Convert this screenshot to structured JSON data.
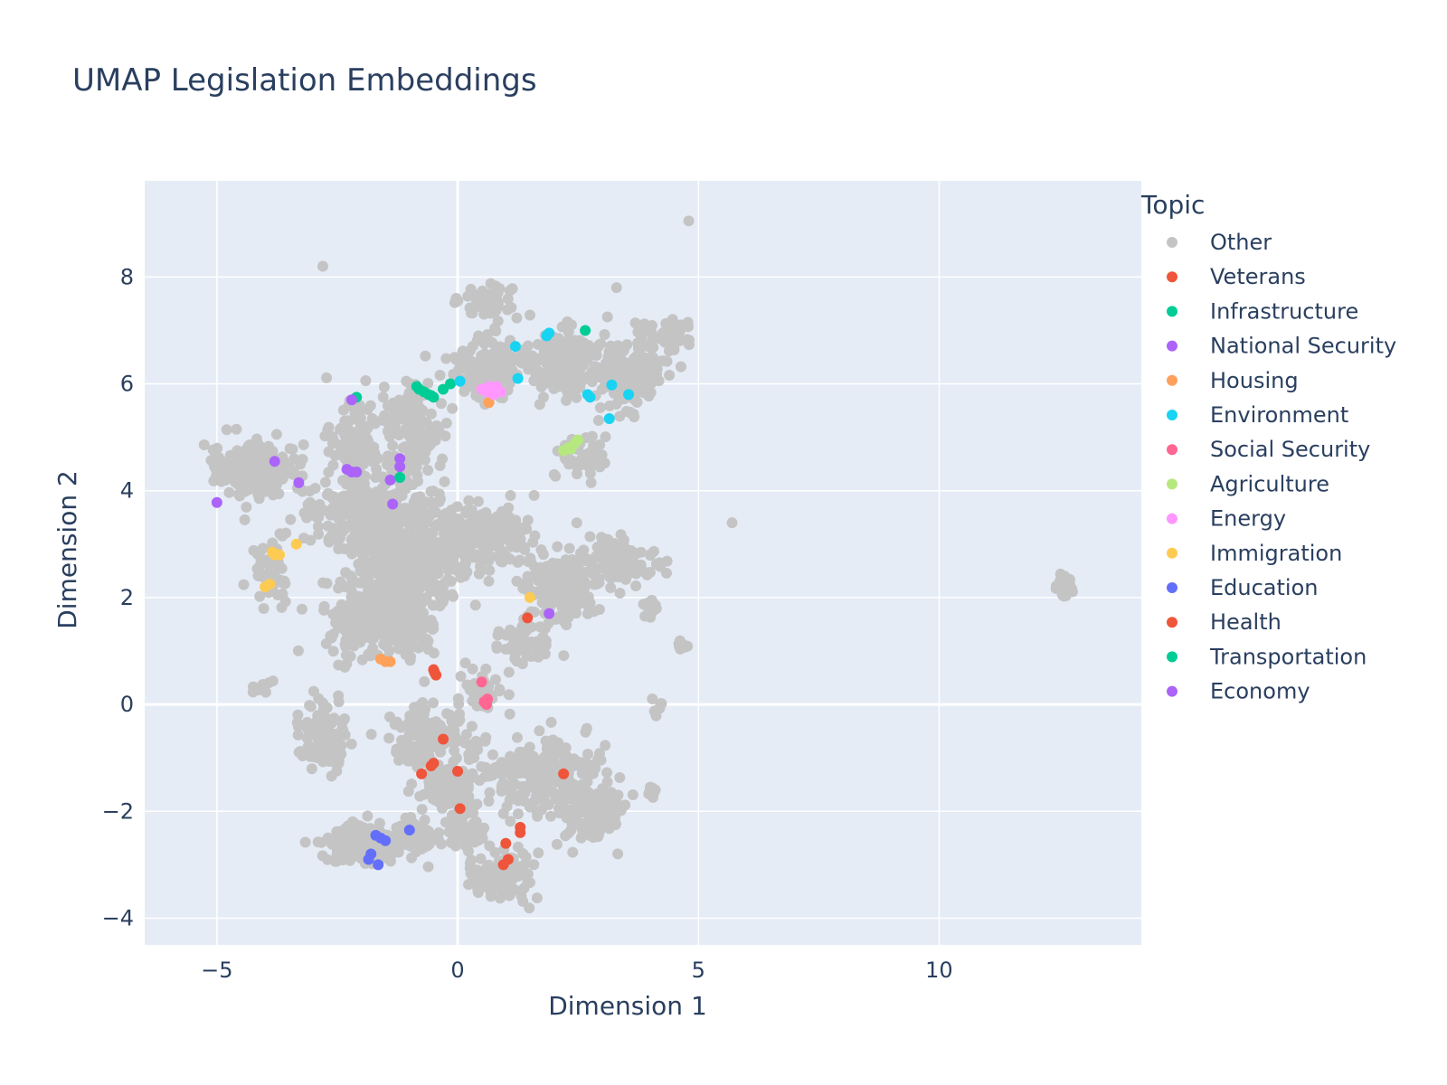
{
  "chart_data": {
    "type": "scatter",
    "title": "UMAP Legislation Embeddings",
    "xlabel": "Dimension 1",
    "ylabel": "Dimension 2",
    "xlim": [
      -6.5,
      14.2
    ],
    "ylim": [
      -4.5,
      9.8
    ],
    "xticks": [
      -5,
      0,
      5,
      10
    ],
    "yticks": [
      -4,
      -2,
      0,
      2,
      4,
      6,
      8
    ],
    "grid": true,
    "legend": {
      "title": "Topic",
      "position": "right"
    },
    "other_clusters": [
      {
        "center": [
          -4.2,
          4.4
        ],
        "spread": [
          0.55,
          0.35
        ],
        "n": 260
      },
      {
        "center": [
          -2.2,
          5.0
        ],
        "spread": [
          0.35,
          0.45
        ],
        "n": 90
      },
      {
        "center": [
          -1.0,
          5.1
        ],
        "spread": [
          0.5,
          0.6
        ],
        "n": 140
      },
      {
        "center": [
          0.6,
          7.6
        ],
        "spread": [
          0.35,
          0.25
        ],
        "n": 60
      },
      {
        "center": [
          0.6,
          6.3
        ],
        "spread": [
          0.55,
          0.4
        ],
        "n": 120
      },
      {
        "center": [
          2.2,
          6.4
        ],
        "spread": [
          0.65,
          0.45
        ],
        "n": 180
      },
      {
        "center": [
          3.6,
          6.2
        ],
        "spread": [
          0.55,
          0.45
        ],
        "n": 150
      },
      {
        "center": [
          4.4,
          6.9
        ],
        "spread": [
          0.35,
          0.2
        ],
        "n": 50
      },
      {
        "center": [
          2.6,
          4.6
        ],
        "spread": [
          0.35,
          0.3
        ],
        "n": 50
      },
      {
        "center": [
          -1.8,
          3.6
        ],
        "spread": [
          0.9,
          0.5
        ],
        "n": 320
      },
      {
        "center": [
          -1.0,
          2.6
        ],
        "spread": [
          0.9,
          0.6
        ],
        "n": 380
      },
      {
        "center": [
          0.6,
          3.2
        ],
        "spread": [
          0.7,
          0.35
        ],
        "n": 180
      },
      {
        "center": [
          -2.0,
          1.6
        ],
        "spread": [
          0.55,
          0.5
        ],
        "n": 160
      },
      {
        "center": [
          -1.0,
          1.4
        ],
        "spread": [
          0.4,
          0.45
        ],
        "n": 120
      },
      {
        "center": [
          -3.9,
          2.5
        ],
        "spread": [
          0.3,
          0.45
        ],
        "n": 60
      },
      {
        "center": [
          2.2,
          2.2
        ],
        "spread": [
          0.6,
          0.45
        ],
        "n": 180
      },
      {
        "center": [
          3.4,
          2.7
        ],
        "spread": [
          0.5,
          0.3
        ],
        "n": 110
      },
      {
        "center": [
          1.4,
          1.2
        ],
        "spread": [
          0.4,
          0.3
        ],
        "n": 50
      },
      {
        "center": [
          0.6,
          0.3
        ],
        "spread": [
          0.35,
          0.3
        ],
        "n": 45
      },
      {
        "center": [
          -2.8,
          -0.6
        ],
        "spread": [
          0.35,
          0.4
        ],
        "n": 120
      },
      {
        "center": [
          -0.6,
          -0.6
        ],
        "spread": [
          0.6,
          0.35
        ],
        "n": 160
      },
      {
        "center": [
          -0.2,
          -1.6
        ],
        "spread": [
          0.5,
          0.4
        ],
        "n": 90
      },
      {
        "center": [
          1.6,
          -1.3
        ],
        "spread": [
          0.8,
          0.5
        ],
        "n": 200
      },
      {
        "center": [
          2.8,
          -1.9
        ],
        "spread": [
          0.45,
          0.5
        ],
        "n": 140
      },
      {
        "center": [
          -2.0,
          -2.6
        ],
        "spread": [
          0.65,
          0.25
        ],
        "n": 160
      },
      {
        "center": [
          -0.9,
          -2.5
        ],
        "spread": [
          0.4,
          0.2
        ],
        "n": 60
      },
      {
        "center": [
          0.9,
          -3.2
        ],
        "spread": [
          0.45,
          0.3
        ],
        "n": 110
      },
      {
        "center": [
          0.2,
          -2.4
        ],
        "spread": [
          0.3,
          0.2
        ],
        "n": 40
      },
      {
        "center": [
          12.6,
          2.2
        ],
        "spread": [
          0.12,
          0.15
        ],
        "n": 30
      },
      {
        "center": [
          4.7,
          1.1
        ],
        "spread": [
          0.12,
          0.1
        ],
        "n": 10
      },
      {
        "center": [
          4.0,
          1.8
        ],
        "spread": [
          0.15,
          0.12
        ],
        "n": 10
      },
      {
        "center": [
          4.1,
          -0.1
        ],
        "spread": [
          0.1,
          0.12
        ],
        "n": 8
      },
      {
        "center": [
          4.0,
          -1.7
        ],
        "spread": [
          0.1,
          0.12
        ],
        "n": 8
      },
      {
        "center": [
          -4.1,
          0.3
        ],
        "spread": [
          0.15,
          0.1
        ],
        "n": 10
      }
    ],
    "other_points": [
      [
        -2.8,
        8.2
      ],
      [
        4.8,
        9.05
      ],
      [
        5.7,
        3.4
      ],
      [
        3.3,
        7.8
      ]
    ],
    "series": [
      {
        "name": "Other",
        "color": "#c4c4c4",
        "points": []
      },
      {
        "name": "Veterans",
        "color": "#ef553b",
        "points": [
          [
            -0.5,
            0.65
          ],
          [
            -0.45,
            0.55
          ],
          [
            -0.48,
            0.6
          ]
        ]
      },
      {
        "name": "Infrastructure",
        "color": "#00cc96",
        "points": [
          [
            -0.8,
            5.9
          ],
          [
            -0.7,
            5.85
          ],
          [
            -0.6,
            5.8
          ],
          [
            -0.5,
            5.75
          ],
          [
            -0.3,
            5.9
          ],
          [
            -0.15,
            6.0
          ],
          [
            -0.85,
            5.95
          ],
          [
            -0.55,
            5.78
          ],
          [
            2.65,
            7.0
          ],
          [
            -2.1,
            5.75
          ]
        ]
      },
      {
        "name": "National Security",
        "color": "#ab63fa",
        "points": [
          [
            -2.3,
            4.4
          ],
          [
            -2.2,
            4.35
          ],
          [
            -2.1,
            4.35
          ],
          [
            -3.8,
            4.55
          ],
          [
            -3.3,
            4.15
          ],
          [
            -1.4,
            4.2
          ],
          [
            -1.2,
            4.45
          ],
          [
            -1.2,
            4.6
          ],
          [
            -1.35,
            3.75
          ],
          [
            -5.0,
            3.78
          ],
          [
            -2.2,
            5.7
          ]
        ]
      },
      {
        "name": "Housing",
        "color": "#ffa15a",
        "points": [
          [
            -1.6,
            0.85
          ],
          [
            -1.5,
            0.8
          ],
          [
            -1.4,
            0.8
          ],
          [
            0.65,
            5.65
          ]
        ]
      },
      {
        "name": "Environment",
        "color": "#19d3f3",
        "points": [
          [
            0.05,
            6.05
          ],
          [
            1.2,
            6.7
          ],
          [
            1.25,
            6.1
          ],
          [
            1.85,
            6.9
          ],
          [
            1.9,
            6.95
          ],
          [
            2.7,
            5.8
          ],
          [
            2.75,
            5.75
          ],
          [
            3.2,
            5.98
          ],
          [
            3.55,
            5.8
          ],
          [
            3.15,
            5.35
          ]
        ]
      },
      {
        "name": "Social Security",
        "color": "#ff6692",
        "points": [
          [
            0.5,
            0.42
          ],
          [
            0.55,
            0.05
          ],
          [
            0.6,
            0.0
          ],
          [
            0.62,
            0.1
          ],
          [
            0.58,
            0.02
          ]
        ]
      },
      {
        "name": "Agriculture",
        "color": "#b6e880",
        "points": [
          [
            2.2,
            4.75
          ],
          [
            2.3,
            4.8
          ],
          [
            2.4,
            4.85
          ],
          [
            2.5,
            4.95
          ],
          [
            2.35,
            4.78
          ],
          [
            2.45,
            4.9
          ]
        ]
      },
      {
        "name": "Energy",
        "color": "#ff97ff",
        "points": [
          [
            0.5,
            5.9
          ],
          [
            0.6,
            5.85
          ],
          [
            0.7,
            5.9
          ],
          [
            0.8,
            5.95
          ],
          [
            0.9,
            5.85
          ],
          [
            0.75,
            5.8
          ],
          [
            0.65,
            5.95
          ]
        ]
      },
      {
        "name": "Immigration",
        "color": "#fecb52",
        "points": [
          [
            -4.0,
            2.2
          ],
          [
            -3.9,
            2.25
          ],
          [
            -3.8,
            2.8
          ],
          [
            -3.7,
            2.8
          ],
          [
            -3.35,
            3.0
          ],
          [
            1.5,
            2.0
          ],
          [
            -3.85,
            2.85
          ]
        ]
      },
      {
        "name": "Education",
        "color": "#636efa",
        "points": [
          [
            -1.7,
            -2.45
          ],
          [
            -1.6,
            -2.5
          ],
          [
            -1.5,
            -2.55
          ],
          [
            -1.8,
            -2.8
          ],
          [
            -1.85,
            -2.9
          ],
          [
            -1.65,
            -3.0
          ],
          [
            -1.0,
            -2.35
          ]
        ]
      },
      {
        "name": "Health",
        "color": "#ef553b",
        "points": [
          [
            -0.3,
            -0.65
          ],
          [
            -0.5,
            -1.1
          ],
          [
            -0.55,
            -1.15
          ],
          [
            -0.75,
            -1.3
          ],
          [
            0.0,
            -1.25
          ],
          [
            0.05,
            -1.95
          ],
          [
            1.3,
            -2.3
          ],
          [
            1.3,
            -2.4
          ],
          [
            1.0,
            -2.6
          ],
          [
            1.05,
            -2.9
          ],
          [
            0.95,
            -3.0
          ],
          [
            2.2,
            -1.3
          ],
          [
            1.45,
            1.62
          ]
        ]
      },
      {
        "name": "Transportation",
        "color": "#00cc96",
        "points": [
          [
            -1.2,
            4.25
          ]
        ]
      },
      {
        "name": "Economy",
        "color": "#ab63fa",
        "points": [
          [
            1.9,
            1.7
          ]
        ]
      }
    ]
  }
}
